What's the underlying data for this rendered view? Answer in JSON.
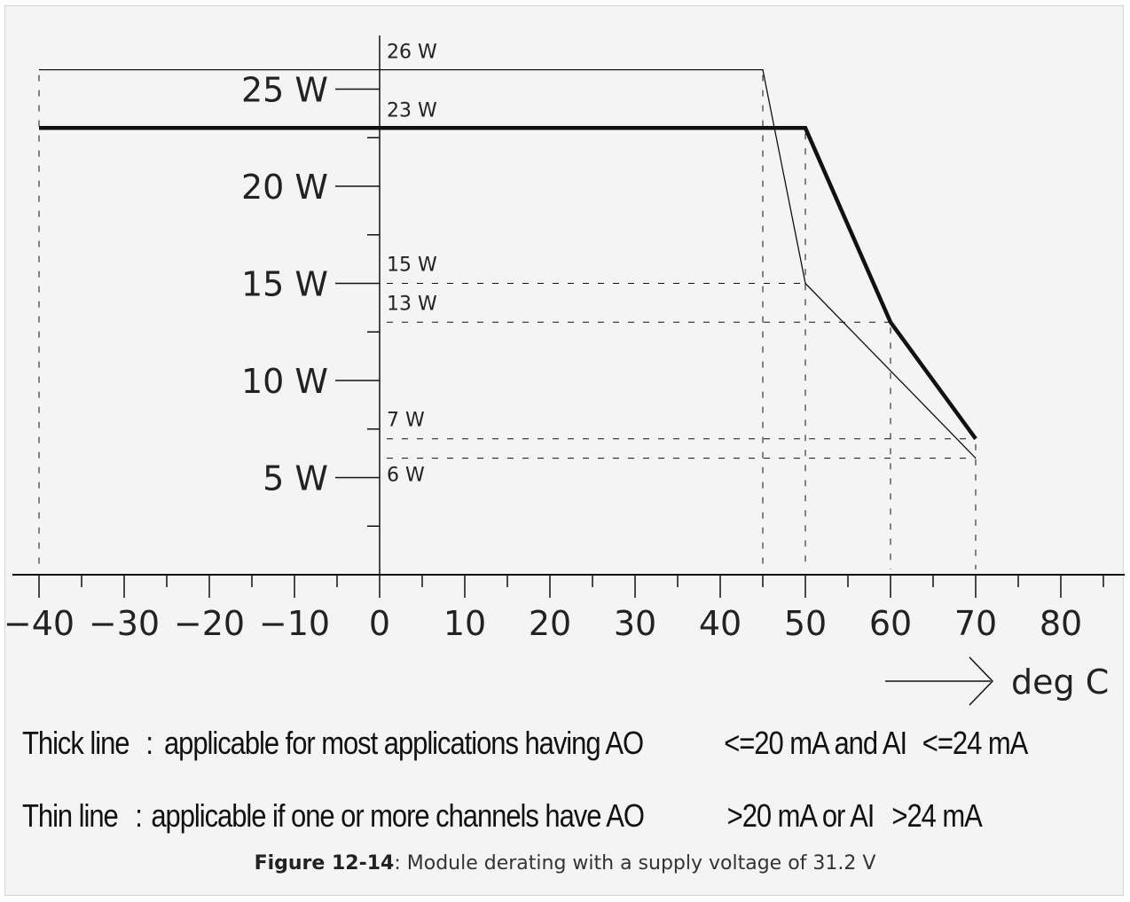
{
  "chart_data": {
    "type": "line",
    "xlabel": "deg C",
    "x_ticks": [
      "−40",
      "−30",
      "−20",
      "−10",
      "0",
      "10",
      "20",
      "30",
      "40",
      "50",
      "60",
      "70",
      "80"
    ],
    "y_ticks": [
      "5  W",
      "10  W",
      "15  W",
      "20  W",
      "25  W"
    ],
    "xlim": [
      -40,
      85
    ],
    "ylim": [
      0,
      26
    ],
    "series": [
      {
        "style": "thick",
        "x": [
          -40,
          50,
          60,
          70
        ],
        "y": [
          23,
          23,
          13,
          7
        ]
      },
      {
        "style": "thin",
        "x": [
          -40,
          45,
          50,
          70
        ],
        "y": [
          26,
          26,
          15,
          6
        ]
      }
    ],
    "point_labels": [
      {
        "text": "26  W",
        "y": 26
      },
      {
        "text": "23  W",
        "y": 23
      },
      {
        "text": "15  W",
        "y": 15
      },
      {
        "text": "13  W",
        "y": 13
      },
      {
        "text": "7  W",
        "y": 7
      },
      {
        "text": "6  W",
        "y": 6
      }
    ]
  },
  "legend": {
    "thick_name": "Thick line",
    "thick_colon": ":",
    "thick_desc": "applicable for most applications having AO",
    "thick_cond1": "<=20 mA and AI",
    "thick_cond2": "<=24 mA",
    "thin_name": "Thin line",
    "thin_colon": ":",
    "thin_desc": "applicable if one or more channels have AO",
    "thin_cond1": ">20 mA or AI",
    "thin_cond2": ">24 mA"
  },
  "caption": {
    "label": "Figure 12-14",
    "text": ": Module derating with a supply voltage of 31.2 V"
  },
  "colors": {
    "line": "#111111",
    "background": "#f4f4f4",
    "frame": "#d4d4d4"
  }
}
